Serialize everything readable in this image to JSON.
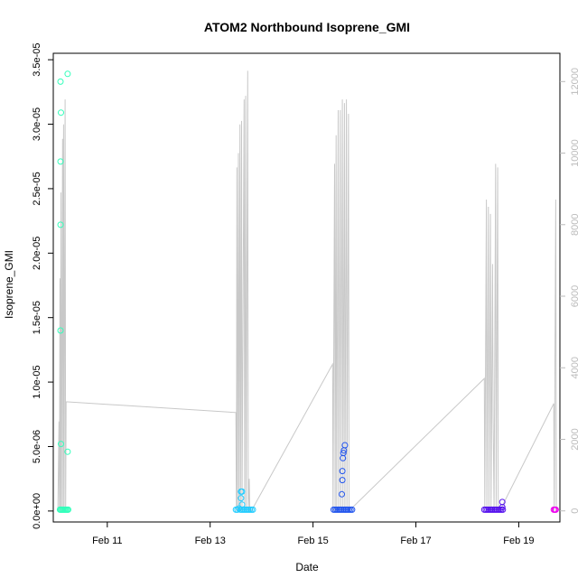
{
  "chart_data": {
    "type": "scatter",
    "title": "ATOM2 Northbound Isoprene_GMI",
    "xlabel": "Date",
    "ylabel": "Isoprene_GMI",
    "x_axis": {
      "unit": "days since Feb 10 00:00",
      "range": [
        9.95,
        19.8
      ],
      "ticks": [
        {
          "value": 11,
          "label": "Feb 11"
        },
        {
          "value": 13,
          "label": "Feb 13"
        },
        {
          "value": 15,
          "label": "Feb 15"
        },
        {
          "value": 17,
          "label": "Feb 17"
        },
        {
          "value": 19,
          "label": "Feb 19"
        }
      ]
    },
    "y_left": {
      "range": [
        -8.5e-07,
        3.55e-05
      ],
      "ticks": [
        {
          "value": 0,
          "label": "0.0e+00"
        },
        {
          "value": 5e-06,
          "label": "5.0e-06"
        },
        {
          "value": 1e-05,
          "label": "1.0e-05"
        },
        {
          "value": 1.5e-05,
          "label": "1.5e-05"
        },
        {
          "value": 2e-05,
          "label": "2.0e-05"
        },
        {
          "value": 2.5e-05,
          "label": "2.5e-05"
        },
        {
          "value": 3e-05,
          "label": "3.0e-05"
        },
        {
          "value": 3.5e-05,
          "label": "3.5e-05"
        }
      ]
    },
    "y_right": {
      "range": [
        -310,
        12790
      ],
      "color": "#bbbbbb",
      "ticks": [
        {
          "value": 0,
          "label": "0"
        },
        {
          "value": 2000,
          "label": "2000"
        },
        {
          "value": 4000,
          "label": "4000"
        },
        {
          "value": 6000,
          "label": "6000"
        },
        {
          "value": 8000,
          "label": "8000"
        },
        {
          "value": 10000,
          "label": "10000"
        },
        {
          "value": 12000,
          "label": "12000"
        }
      ]
    },
    "series": [
      {
        "color": "#33ffbb",
        "values": [
          [
            10.09,
            3.33e-05
          ],
          [
            10.1,
            3.09e-05
          ],
          [
            10.09,
            2.71e-05
          ],
          [
            10.09,
            2.22e-05
          ],
          [
            10.09,
            1.4e-05
          ],
          [
            10.1,
            5.2e-06
          ],
          [
            10.23,
            3.39e-05
          ],
          [
            10.23,
            4.6e-06
          ],
          [
            10.08,
            1e-07
          ],
          [
            10.1,
            1e-07
          ],
          [
            10.12,
            1e-07
          ],
          [
            10.14,
            1e-07
          ],
          [
            10.16,
            1e-07
          ],
          [
            10.18,
            1e-07
          ],
          [
            10.2,
            1e-07
          ],
          [
            10.22,
            1e-07
          ],
          [
            10.24,
            1e-07
          ]
        ]
      },
      {
        "color": "#22ccff",
        "values": [
          [
            13.6,
            1.5e-06
          ],
          [
            13.62,
            1.5e-06
          ],
          [
            13.6,
            1e-06
          ],
          [
            13.62,
            5e-07
          ],
          [
            13.5,
            1e-07
          ],
          [
            13.53,
            1e-07
          ],
          [
            13.56,
            2e-07
          ],
          [
            13.59,
            1e-07
          ],
          [
            13.62,
            1e-07
          ],
          [
            13.65,
            1e-07
          ],
          [
            13.68,
            1e-07
          ],
          [
            13.71,
            1e-07
          ],
          [
            13.74,
            1e-07
          ],
          [
            13.77,
            1e-07
          ],
          [
            13.8,
            1e-07
          ],
          [
            13.83,
            1e-07
          ]
        ]
      },
      {
        "color": "#2255ee",
        "values": [
          [
            15.62,
            5.1e-06
          ],
          [
            15.6,
            4.7e-06
          ],
          [
            15.59,
            4.5e-06
          ],
          [
            15.58,
            4.1e-06
          ],
          [
            15.57,
            3.1e-06
          ],
          [
            15.57,
            2.4e-06
          ],
          [
            15.56,
            1.3e-06
          ],
          [
            15.4,
            1e-07
          ],
          [
            15.43,
            1e-07
          ],
          [
            15.46,
            1e-07
          ],
          [
            15.49,
            1e-07
          ],
          [
            15.52,
            1e-07
          ],
          [
            15.55,
            1e-07
          ],
          [
            15.58,
            1e-07
          ],
          [
            15.61,
            1e-07
          ],
          [
            15.64,
            1e-07
          ],
          [
            15.67,
            1e-07
          ],
          [
            15.7,
            1e-07
          ],
          [
            15.73,
            1e-07
          ],
          [
            15.76,
            1e-07
          ]
        ]
      },
      {
        "color": "#5511ee",
        "values": [
          [
            18.68,
            7e-07
          ],
          [
            18.68,
            3e-07
          ],
          [
            18.33,
            1e-07
          ],
          [
            18.36,
            1e-07
          ],
          [
            18.39,
            1e-07
          ],
          [
            18.42,
            1e-07
          ],
          [
            18.45,
            1e-07
          ],
          [
            18.48,
            1e-07
          ],
          [
            18.51,
            1e-07
          ],
          [
            18.54,
            1e-07
          ],
          [
            18.57,
            1e-07
          ],
          [
            18.6,
            1e-07
          ],
          [
            18.63,
            1e-07
          ],
          [
            18.66,
            1e-07
          ],
          [
            18.69,
            1e-07
          ]
        ]
      },
      {
        "color": "#ee00ee",
        "values": [
          [
            19.68,
            1e-07
          ],
          [
            19.7,
            1e-07
          ],
          [
            19.72,
            1e-07
          ]
        ]
      }
    ],
    "secondary_line": {
      "color": "#c8c8c8",
      "axis": "right",
      "values": [
        [
          10.04,
          0
        ],
        [
          10.06,
          2500
        ],
        [
          10.07,
          0
        ],
        [
          10.08,
          6500
        ],
        [
          10.09,
          0
        ],
        [
          10.1,
          8900
        ],
        [
          10.11,
          0
        ],
        [
          10.13,
          10400
        ],
        [
          10.14,
          0
        ],
        [
          10.15,
          10800
        ],
        [
          10.16,
          0
        ],
        [
          10.18,
          11500
        ],
        [
          10.19,
          0
        ],
        [
          10.2,
          3050
        ],
        [
          13.5,
          2750
        ],
        [
          13.51,
          0
        ],
        [
          13.52,
          9600
        ],
        [
          13.53,
          0
        ],
        [
          13.55,
          10000
        ],
        [
          13.56,
          0
        ],
        [
          13.58,
          10800
        ],
        [
          13.59,
          0
        ],
        [
          13.61,
          10900
        ],
        [
          13.62,
          0
        ],
        [
          13.66,
          11500
        ],
        [
          13.67,
          0
        ],
        [
          13.69,
          11600
        ],
        [
          13.7,
          0
        ],
        [
          13.73,
          12300
        ],
        [
          13.74,
          0
        ],
        [
          13.76,
          900
        ],
        [
          13.77,
          0
        ],
        [
          13.8,
          0
        ],
        [
          15.38,
          4100
        ],
        [
          15.39,
          0
        ],
        [
          15.42,
          9700
        ],
        [
          15.43,
          0
        ],
        [
          15.45,
          10500
        ],
        [
          15.46,
          0
        ],
        [
          15.49,
          11200
        ],
        [
          15.5,
          0
        ],
        [
          15.53,
          11200
        ],
        [
          15.54,
          0
        ],
        [
          15.57,
          11500
        ],
        [
          15.58,
          0
        ],
        [
          15.61,
          11400
        ],
        [
          15.62,
          0
        ],
        [
          15.65,
          11500
        ],
        [
          15.66,
          0
        ],
        [
          15.69,
          11100
        ],
        [
          15.7,
          0
        ],
        [
          18.33,
          3700
        ],
        [
          18.34,
          0
        ],
        [
          18.37,
          8700
        ],
        [
          18.38,
          0
        ],
        [
          18.41,
          8500
        ],
        [
          18.42,
          0
        ],
        [
          18.45,
          8300
        ],
        [
          18.46,
          0
        ],
        [
          18.49,
          6900
        ],
        [
          18.5,
          2700
        ],
        [
          18.52,
          0
        ],
        [
          18.55,
          9700
        ],
        [
          18.56,
          0
        ],
        [
          18.59,
          9600
        ],
        [
          18.6,
          0
        ],
        [
          18.63,
          0
        ],
        [
          19.68,
          3000
        ],
        [
          19.69,
          0
        ],
        [
          19.72,
          8700
        ],
        [
          19.73,
          0
        ]
      ]
    }
  }
}
